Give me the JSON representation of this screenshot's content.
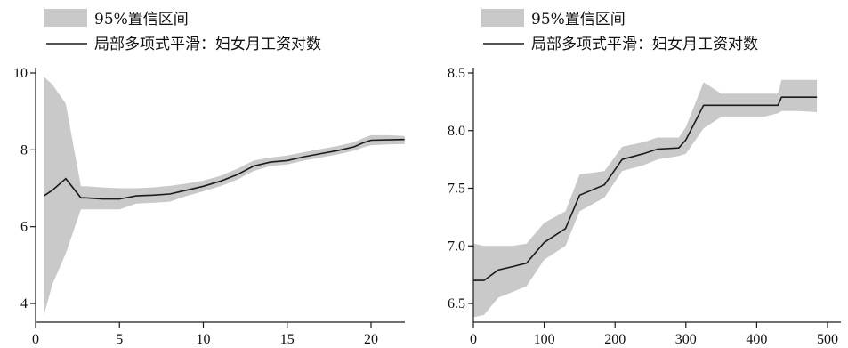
{
  "chart_data": [
    {
      "type": "line",
      "title": "",
      "xlabel": "",
      "ylabel": "",
      "xlim": [
        0,
        22
      ],
      "ylim": [
        3.7,
        10.2
      ],
      "xticks": [
        0,
        5,
        10,
        15,
        20
      ],
      "yticks": [
        4,
        6,
        8,
        10
      ],
      "legend": {
        "placement": "top-left",
        "band_label": "95%置信区间",
        "line_label": "局部多项式平滑：妇女月工资对数"
      },
      "series": [
        {
          "name": "局部多项式平滑：妇女月工资对数",
          "x": [
            0.5,
            1,
            1.8,
            2.7,
            3,
            4,
            5,
            6,
            7,
            8,
            9,
            10,
            11,
            12,
            13,
            14,
            15,
            16,
            17,
            18,
            19,
            19.5,
            20,
            21,
            22
          ],
          "y": [
            6.8,
            6.95,
            7.25,
            6.75,
            6.75,
            6.72,
            6.72,
            6.8,
            6.82,
            6.85,
            6.95,
            7.05,
            7.18,
            7.35,
            7.58,
            7.68,
            7.72,
            7.82,
            7.9,
            7.98,
            8.08,
            8.18,
            8.25,
            8.26,
            8.27
          ],
          "lower": [
            3.7,
            4.5,
            5.3,
            6.45,
            6.45,
            6.45,
            6.45,
            6.6,
            6.62,
            6.65,
            6.8,
            6.92,
            7.05,
            7.22,
            7.45,
            7.58,
            7.62,
            7.72,
            7.8,
            7.88,
            7.98,
            8.06,
            8.12,
            8.14,
            8.15
          ],
          "upper": [
            9.9,
            9.7,
            9.2,
            7.05,
            7.05,
            7.02,
            7.0,
            7.0,
            7.02,
            7.06,
            7.12,
            7.2,
            7.32,
            7.5,
            7.72,
            7.8,
            7.85,
            7.94,
            8.02,
            8.1,
            8.2,
            8.3,
            8.38,
            8.38,
            8.36
          ]
        }
      ]
    },
    {
      "type": "line",
      "title": "",
      "xlabel": "",
      "ylabel": "",
      "xlim": [
        0,
        500
      ],
      "ylim": [
        6.38,
        8.55
      ],
      "xticks": [
        0,
        100,
        200,
        300,
        400,
        500
      ],
      "yticks": [
        6.5,
        7.0,
        7.5,
        8.0,
        8.5
      ],
      "legend": {
        "placement": "top-left",
        "band_label": "95%置信区间",
        "line_label": "局部多项式平滑：妇女月工资对数"
      },
      "series": [
        {
          "name": "局部多项式平滑：妇女月工资对数",
          "x": [
            0,
            15,
            35,
            55,
            75,
            100,
            130,
            150,
            185,
            210,
            240,
            260,
            290,
            300,
            325,
            350,
            380,
            410,
            430,
            435,
            460,
            485
          ],
          "y": [
            6.7,
            6.7,
            6.79,
            6.82,
            6.85,
            7.03,
            7.15,
            7.44,
            7.53,
            7.75,
            7.8,
            7.84,
            7.85,
            7.92,
            8.22,
            8.22,
            8.22,
            8.22,
            8.22,
            8.29,
            8.29,
            8.29
          ],
          "lower": [
            6.38,
            6.4,
            6.55,
            6.6,
            6.65,
            6.88,
            7.0,
            7.3,
            7.42,
            7.65,
            7.7,
            7.75,
            7.78,
            7.8,
            8.02,
            8.12,
            8.12,
            8.12,
            8.15,
            8.17,
            8.17,
            8.16
          ],
          "upper": [
            7.02,
            7.0,
            7.0,
            7.0,
            7.02,
            7.2,
            7.3,
            7.62,
            7.65,
            7.86,
            7.9,
            7.94,
            7.94,
            8.03,
            8.42,
            8.32,
            8.32,
            8.32,
            8.32,
            8.44,
            8.44,
            8.44
          ]
        }
      ]
    }
  ],
  "colors": {
    "band": "#c9c9c9",
    "line": "#1a1a1a",
    "axis": "#1a1a1a"
  }
}
